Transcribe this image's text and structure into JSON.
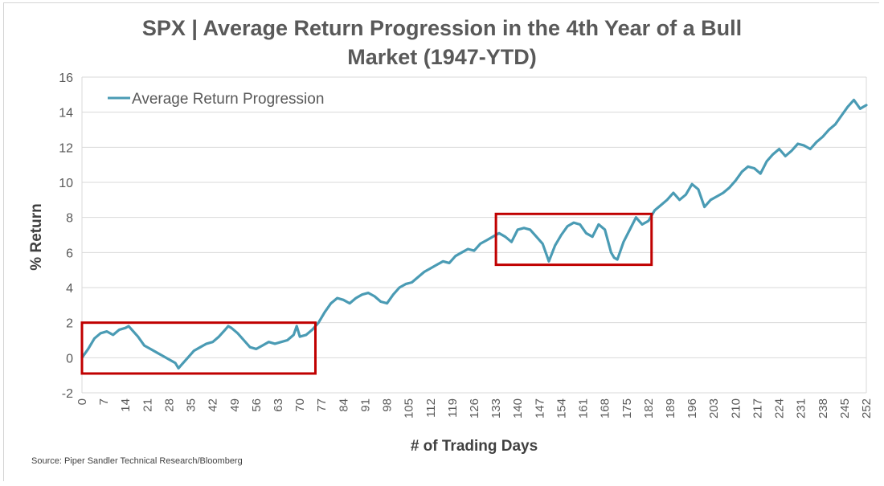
{
  "chart_data": {
    "type": "line",
    "title_lines": [
      "SPX | Average Return Progression in the 4th Year of a Bull",
      "Market (1947-YTD)"
    ],
    "xlabel": "# of Trading Days",
    "ylabel": "% Return",
    "source": "Source: Piper Sandler Technical Research/Bloomberg",
    "xlim": [
      0,
      252
    ],
    "ylim": [
      -2,
      16
    ],
    "yticks": [
      -2,
      0,
      2,
      4,
      6,
      8,
      10,
      12,
      14,
      16
    ],
    "xticks": [
      0,
      7,
      14,
      21,
      28,
      35,
      42,
      49,
      56,
      63,
      70,
      77,
      84,
      91,
      98,
      105,
      112,
      119,
      126,
      133,
      140,
      147,
      154,
      161,
      168,
      175,
      182,
      189,
      196,
      203,
      210,
      217,
      224,
      231,
      238,
      245,
      252
    ],
    "grid": true,
    "legend_position": "top-left",
    "series": [
      {
        "name": "Average Return Progression",
        "color": "#4a9bb4",
        "x": [
          0,
          2,
          4,
          6,
          8,
          10,
          12,
          14,
          15,
          16,
          18,
          20,
          22,
          24,
          26,
          28,
          30,
          31,
          32,
          34,
          36,
          38,
          40,
          42,
          44,
          46,
          47,
          48,
          50,
          52,
          54,
          56,
          58,
          60,
          62,
          64,
          66,
          68,
          69,
          70,
          72,
          74,
          76,
          78,
          80,
          82,
          84,
          86,
          88,
          90,
          92,
          94,
          96,
          98,
          100,
          102,
          104,
          106,
          108,
          110,
          112,
          114,
          116,
          118,
          120,
          122,
          124,
          126,
          128,
          130,
          132,
          134,
          136,
          138,
          140,
          142,
          144,
          146,
          148,
          150,
          152,
          154,
          156,
          158,
          160,
          162,
          164,
          166,
          168,
          170,
          171,
          172,
          174,
          176,
          178,
          180,
          182,
          184,
          186,
          188,
          190,
          192,
          194,
          196,
          198,
          200,
          202,
          204,
          206,
          208,
          210,
          212,
          214,
          216,
          218,
          220,
          222,
          224,
          226,
          228,
          230,
          232,
          234,
          236,
          238,
          240,
          242,
          244,
          246,
          248,
          250,
          252
        ],
        "y": [
          0.0,
          0.5,
          1.1,
          1.4,
          1.5,
          1.3,
          1.6,
          1.7,
          1.8,
          1.6,
          1.2,
          0.7,
          0.5,
          0.3,
          0.1,
          -0.1,
          -0.3,
          -0.6,
          -0.4,
          0.0,
          0.4,
          0.6,
          0.8,
          0.9,
          1.2,
          1.6,
          1.8,
          1.7,
          1.4,
          1.0,
          0.6,
          0.5,
          0.7,
          0.9,
          0.8,
          0.9,
          1.0,
          1.3,
          1.8,
          1.2,
          1.3,
          1.6,
          2.0,
          2.6,
          3.1,
          3.4,
          3.3,
          3.1,
          3.4,
          3.6,
          3.7,
          3.5,
          3.2,
          3.1,
          3.6,
          4.0,
          4.2,
          4.3,
          4.6,
          4.9,
          5.1,
          5.3,
          5.5,
          5.4,
          5.8,
          6.0,
          6.2,
          6.1,
          6.5,
          6.7,
          6.9,
          7.1,
          6.9,
          6.6,
          7.3,
          7.4,
          7.3,
          6.9,
          6.5,
          5.5,
          6.4,
          7.0,
          7.5,
          7.7,
          7.6,
          7.1,
          6.9,
          7.6,
          7.3,
          6.0,
          5.7,
          5.6,
          6.6,
          7.3,
          8.0,
          7.6,
          7.8,
          8.4,
          8.7,
          9.0,
          9.4,
          9.0,
          9.3,
          9.9,
          9.6,
          8.6,
          9.0,
          9.2,
          9.4,
          9.7,
          10.1,
          10.6,
          10.9,
          10.8,
          10.5,
          11.2,
          11.6,
          11.9,
          11.5,
          11.8,
          12.2,
          12.1,
          11.9,
          12.3,
          12.6,
          13.0,
          13.3,
          13.8,
          14.3,
          14.7,
          14.2,
          14.4
        ]
      }
    ],
    "highlight_boxes": [
      {
        "x_range": [
          0,
          75
        ],
        "y_range": [
          -0.9,
          2.0
        ],
        "color": "#c00000"
      },
      {
        "x_range": [
          133,
          183
        ],
        "y_range": [
          5.3,
          8.2
        ],
        "color": "#c00000"
      }
    ]
  }
}
